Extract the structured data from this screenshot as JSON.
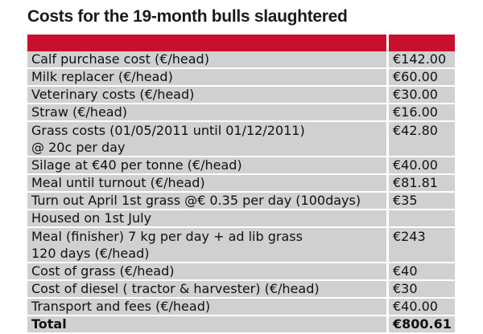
{
  "title": "Costs for the 19-month bulls slaughtered",
  "accent_color": "#c8102e",
  "rows": [
    {
      "label": "Calf purchase cost (€/head)",
      "value": "€142.00"
    },
    {
      "label": "Milk replacer (€/head)",
      "value": "€60.00"
    },
    {
      "label": "Veterinary costs (€/head)",
      "value": "€30.00"
    },
    {
      "label": "Straw (€/head)",
      "value": "€16.00"
    },
    {
      "label": "Grass costs (01/05/2011 until 01/12/2011)",
      "label2": "@ 20c per day",
      "value": "€42.80"
    },
    {
      "label": "Silage at €40 per tonne (€/head)",
      "value": "€40.00"
    },
    {
      "label": "Meal until turnout (€/head)",
      "value": "€81.81"
    },
    {
      "label": "Turn out April 1st grass @€ 0.35 per day (100days)",
      "value": "€35"
    },
    {
      "label": "Housed on 1st July",
      "value": ""
    },
    {
      "label": "Meal (finisher) 7 kg per day + ad lib grass",
      "label2": "120 days (€/head)",
      "value": "€243"
    },
    {
      "label": "Cost of grass (€/head)",
      "value": "€40"
    },
    {
      "label": "Cost of diesel ( tractor & harvester) (€/head)",
      "value": "€30"
    },
    {
      "label": "Transport and fees (€/head)",
      "value": "€40.00"
    }
  ],
  "total": {
    "label": "Total",
    "value": "€800.61"
  }
}
